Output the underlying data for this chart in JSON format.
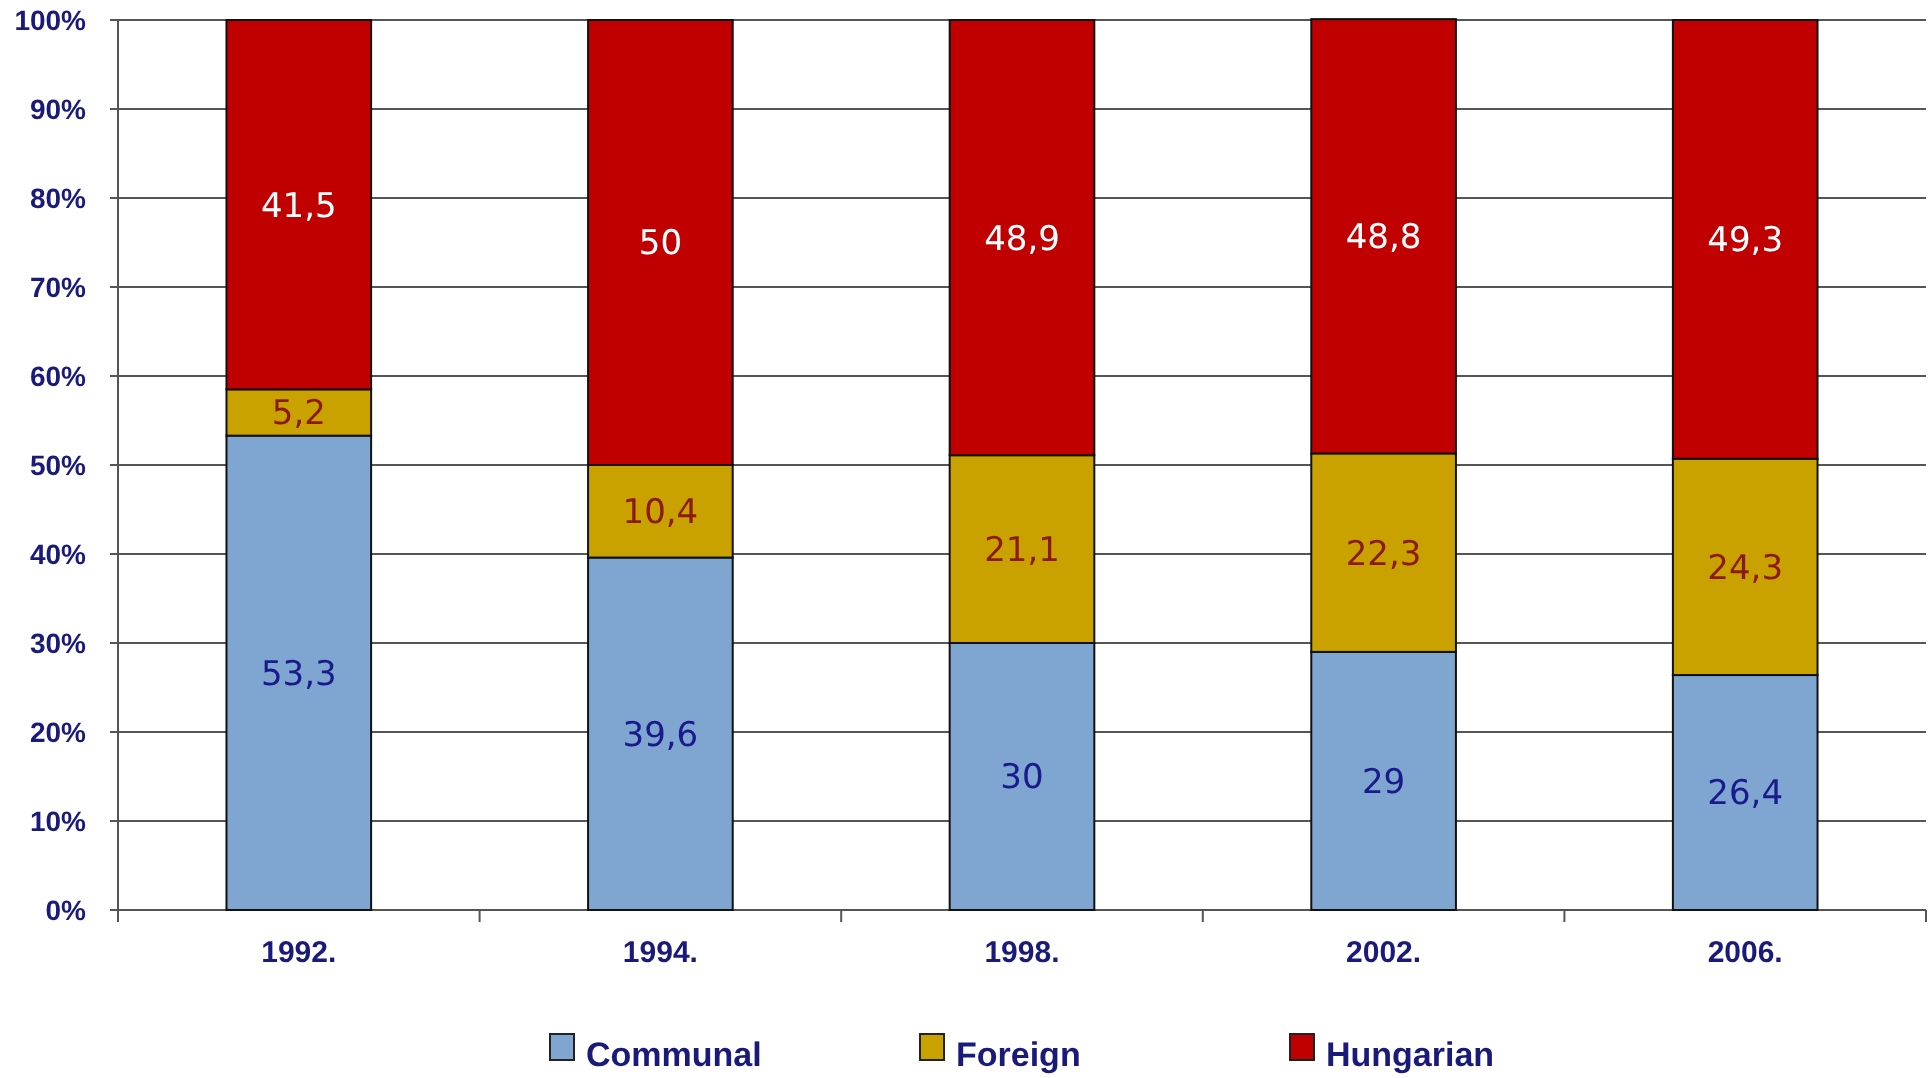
{
  "chart_data": {
    "type": "bar",
    "stacked": true,
    "categories": [
      "1992.",
      "1994.",
      "1998.",
      "2002.",
      "2006."
    ],
    "series": [
      {
        "name": "Communal",
        "color": "#7fa6d0",
        "values": [
          53.3,
          39.6,
          30,
          29,
          26.4
        ],
        "value_labels": [
          "53,3",
          "39,6",
          "30",
          "29",
          "26,4"
        ]
      },
      {
        "name": "Foreign",
        "color": "#c9a200",
        "values": [
          5.2,
          10.4,
          21.1,
          22.3,
          24.3
        ],
        "value_labels": [
          "5,2",
          "10,4",
          "21,1",
          "22,3",
          "24,3"
        ]
      },
      {
        "name": "Hungarian",
        "color": "#c00000",
        "values": [
          41.5,
          50,
          48.9,
          48.8,
          49.3
        ],
        "value_labels": [
          "41,5",
          "50",
          "48,9",
          "48,8",
          "49,3"
        ]
      }
    ],
    "ylim": [
      0,
      100
    ],
    "yticks": [
      {
        "value": 0,
        "label": "0%"
      },
      {
        "value": 10,
        "label": "10%"
      },
      {
        "value": 20,
        "label": "20%"
      },
      {
        "value": 30,
        "label": "30%"
      },
      {
        "value": 40,
        "label": "40%"
      },
      {
        "value": 50,
        "label": "50%"
      },
      {
        "value": 60,
        "label": "60%"
      },
      {
        "value": 70,
        "label": "70%"
      },
      {
        "value": 80,
        "label": "80%"
      },
      {
        "value": 90,
        "label": "90%"
      },
      {
        "value": 100,
        "label": "100%"
      }
    ],
    "grid": "y",
    "legend": "bottom"
  }
}
